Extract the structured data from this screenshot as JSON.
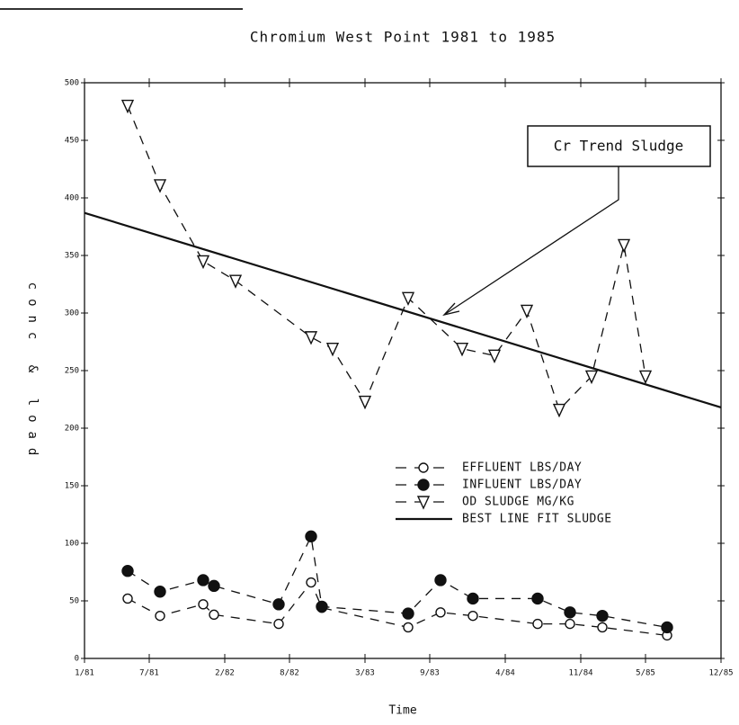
{
  "chart_data": {
    "type": "line",
    "title": "Chromium West Point 1981 to 1985",
    "x_label": "Time",
    "y_label": "conc & load",
    "annotation": "Cr Trend Sludge",
    "xlim": [
      0,
      59
    ],
    "xticks": [
      {
        "value": 0,
        "label": "1/81"
      },
      {
        "value": 6,
        "label": "7/81"
      },
      {
        "value": 13,
        "label": "2/82"
      },
      {
        "value": 19,
        "label": "8/82"
      },
      {
        "value": 26,
        "label": "3/83"
      },
      {
        "value": 32,
        "label": "9/83"
      },
      {
        "value": 39,
        "label": "4/84"
      },
      {
        "value": 46,
        "label": "11/84"
      },
      {
        "value": 52,
        "label": "5/85"
      },
      {
        "value": 59,
        "label": "12/85"
      }
    ],
    "ylim": [
      0,
      500
    ],
    "yticks": [
      0,
      50,
      100,
      150,
      200,
      250,
      300,
      350,
      400,
      450,
      500
    ],
    "series": [
      {
        "name": "EFFLUENT LBS/DAY",
        "color": "#111111",
        "marker": "open-circle",
        "dash": "dashed",
        "x": [
          4,
          7,
          11,
          12,
          18,
          21,
          22,
          30,
          33,
          36,
          42,
          45,
          48,
          54
        ],
        "values": [
          52,
          37,
          47,
          38,
          30,
          66,
          44,
          27,
          40,
          37,
          30,
          30,
          27,
          20
        ]
      },
      {
        "name": "INFLUENT LBS/DAY",
        "color": "#111111",
        "marker": "filled-circle",
        "dash": "dashed",
        "x": [
          4,
          7,
          11,
          12,
          18,
          21,
          22,
          30,
          33,
          36,
          42,
          45,
          48,
          54
        ],
        "values": [
          76,
          58,
          68,
          63,
          47,
          106,
          45,
          39,
          68,
          52,
          52,
          40,
          37,
          27
        ]
      },
      {
        "name": "OD SLUDGE MG/KG",
        "color": "#111111",
        "marker": "triangle",
        "dash": "dashed",
        "x": [
          4,
          7,
          11,
          14,
          21,
          23,
          26,
          30,
          35,
          38,
          41,
          44,
          47,
          50,
          52
        ],
        "values": [
          480,
          411,
          345,
          328,
          279,
          269,
          223,
          313,
          269,
          263,
          302,
          216,
          245,
          359,
          245
        ]
      },
      {
        "name": "BEST LINE FIT SLUDGE",
        "color": "#111111",
        "marker": "none",
        "dash": "solid",
        "x": [
          0,
          59
        ],
        "values": [
          387,
          218
        ]
      }
    ]
  }
}
